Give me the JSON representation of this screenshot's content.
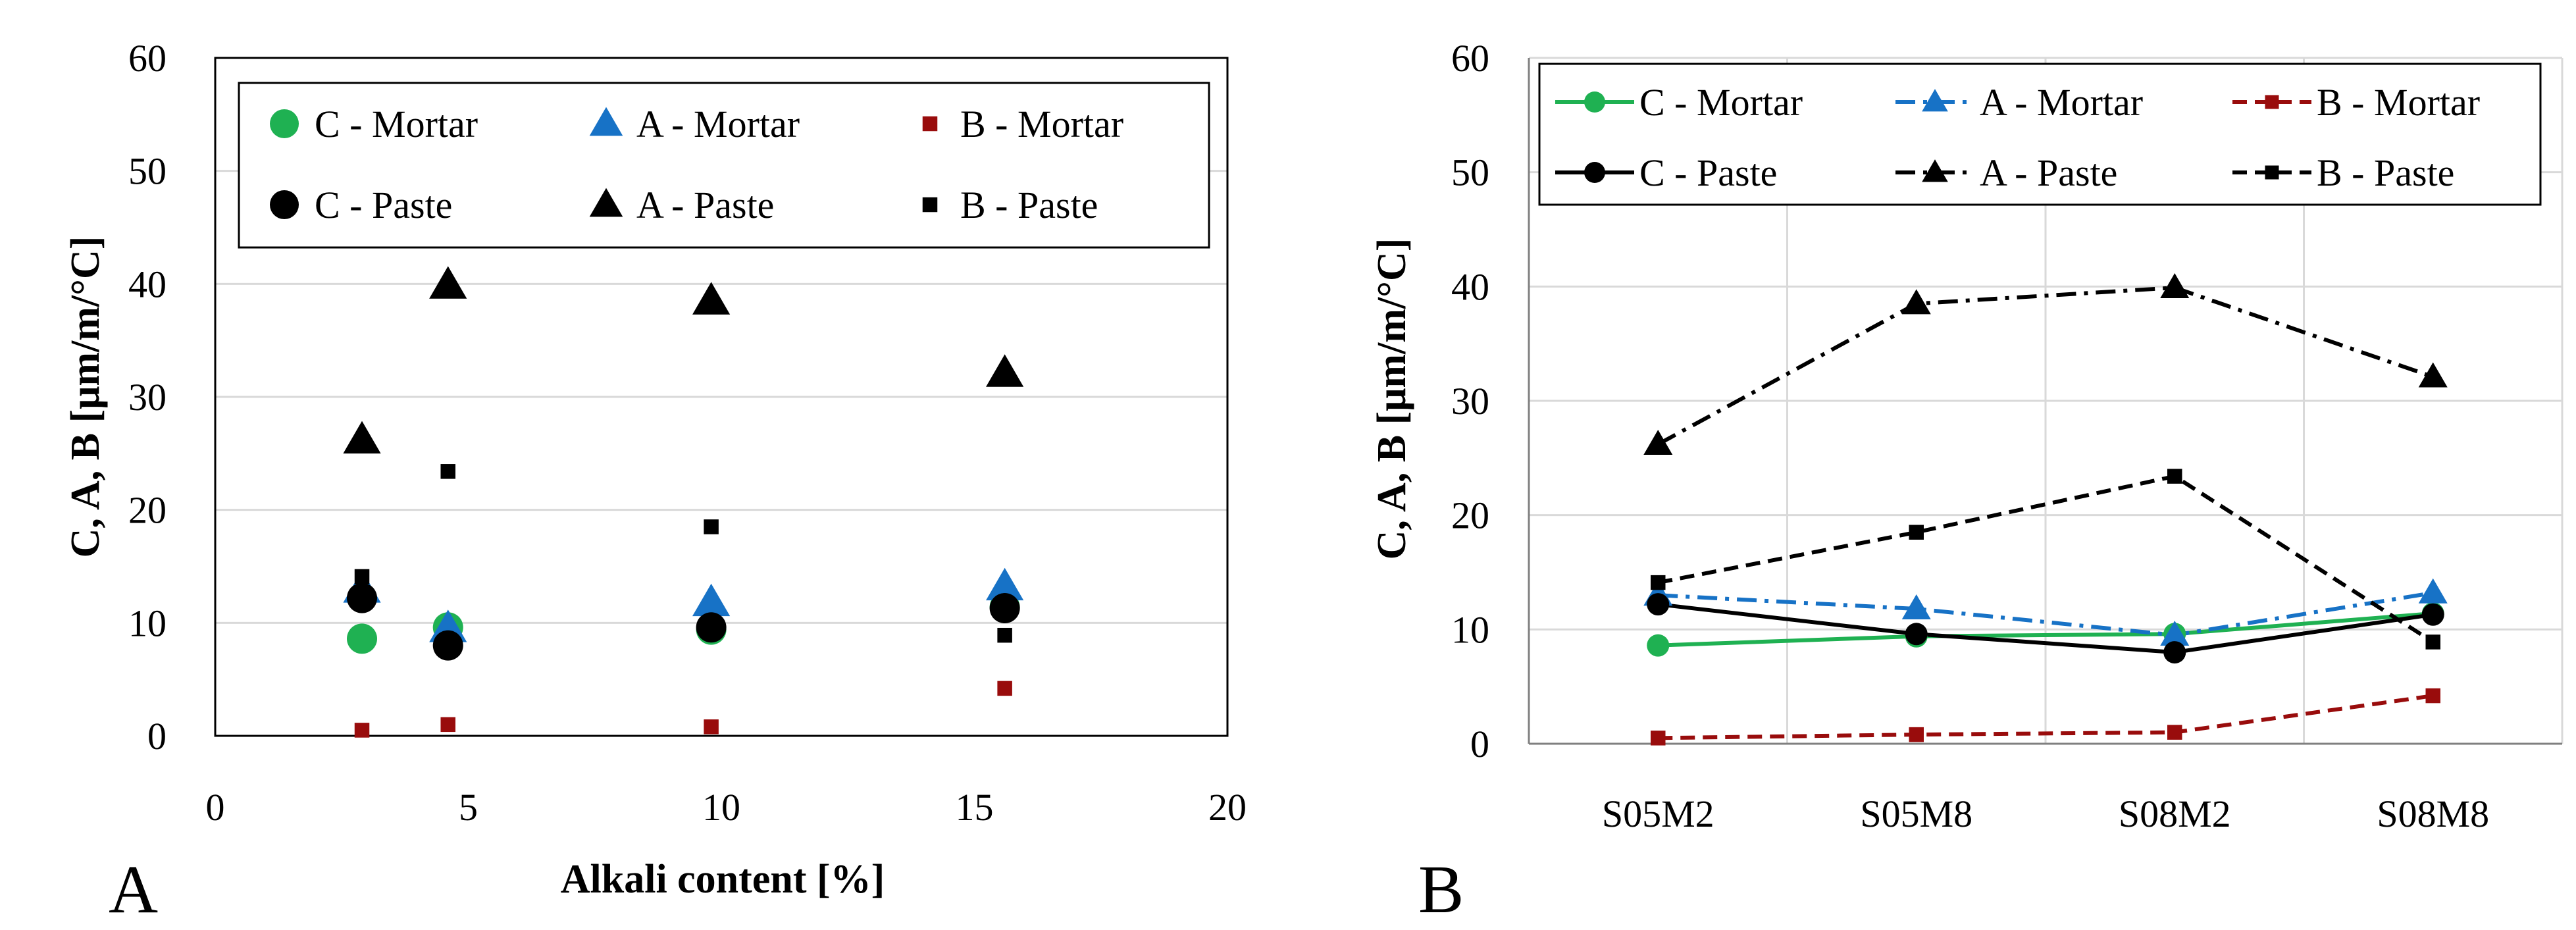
{
  "colors": {
    "green": "#1fb152",
    "blue": "#1772c6",
    "red": "#990c0c",
    "black": "#000000",
    "grid": "#d9d9d9"
  },
  "chart_data": [
    {
      "panel": "A",
      "type": "scatter",
      "xlabel": "Alkali content [%]",
      "ylabel": "C, A, B [μm/m/°C]",
      "xlim": [
        0,
        20
      ],
      "ylim": [
        0,
        60
      ],
      "x_ticks": [
        "0",
        "5",
        "10",
        "15",
        "20"
      ],
      "y_ticks": [
        "0",
        "10",
        "20",
        "30",
        "40",
        "50",
        "60"
      ],
      "grid": "horizontal",
      "legend_position": "top",
      "series": [
        {
          "name": "C - Mortar",
          "marker": "circle",
          "color": "#1fb152",
          "x": [
            2.9,
            4.6,
            9.8,
            15.6
          ],
          "y": [
            8.6,
            9.6,
            9.4,
            11.4
          ]
        },
        {
          "name": "A - Mortar",
          "marker": "triangle",
          "color": "#1772c6",
          "x": [
            2.9,
            4.6,
            9.8,
            15.6
          ],
          "y": [
            13.0,
            9.5,
            11.8,
            13.2
          ]
        },
        {
          "name": "B - Mortar",
          "marker": "square",
          "color": "#990c0c",
          "x": [
            2.9,
            4.6,
            9.8,
            15.6
          ],
          "y": [
            0.5,
            1.0,
            0.8,
            4.2
          ]
        },
        {
          "name": "C - Paste",
          "marker": "circle",
          "color": "#000000",
          "x": [
            2.9,
            4.6,
            9.8,
            15.6
          ],
          "y": [
            12.2,
            8.0,
            9.6,
            11.3
          ]
        },
        {
          "name": "A - Paste",
          "marker": "triangle",
          "color": "#000000",
          "x": [
            2.9,
            4.6,
            9.8,
            15.6
          ],
          "y": [
            26.2,
            39.9,
            38.5,
            32.1
          ]
        },
        {
          "name": "B - Paste",
          "marker": "square",
          "color": "#000000",
          "x": [
            2.9,
            4.6,
            9.8,
            15.6
          ],
          "y": [
            14.1,
            23.4,
            18.5,
            8.9
          ]
        }
      ]
    },
    {
      "panel": "B",
      "type": "line",
      "xlabel": "",
      "ylabel": "C, A, B [μm/m/°C]",
      "categories": [
        "S05M2",
        "S05M8",
        "S08M2",
        "S08M8"
      ],
      "ylim": [
        0,
        60
      ],
      "y_ticks": [
        "0",
        "10",
        "20",
        "30",
        "40",
        "50",
        "60"
      ],
      "grid": "both",
      "legend_position": "top",
      "series": [
        {
          "name": "C - Mortar",
          "marker": "circle",
          "color": "#1fb152",
          "line": "solid",
          "values": [
            8.6,
            9.4,
            9.6,
            11.4
          ]
        },
        {
          "name": "A - Mortar",
          "marker": "triangle",
          "color": "#1772c6",
          "line": "dashdot",
          "values": [
            13.0,
            11.8,
            9.5,
            13.2
          ]
        },
        {
          "name": "B - Mortar",
          "marker": "square",
          "color": "#990c0c",
          "line": "dashed",
          "values": [
            0.5,
            0.8,
            1.0,
            4.2
          ]
        },
        {
          "name": "C - Paste",
          "marker": "circle",
          "color": "#000000",
          "line": "solid",
          "values": [
            12.2,
            9.6,
            8.0,
            11.3
          ]
        },
        {
          "name": "A - Paste",
          "marker": "triangle",
          "color": "#000000",
          "line": "dashdot",
          "values": [
            26.2,
            38.5,
            39.9,
            32.1
          ]
        },
        {
          "name": "B - Paste",
          "marker": "square",
          "color": "#000000",
          "line": "dashed",
          "values": [
            14.1,
            18.5,
            23.4,
            8.9
          ]
        }
      ]
    }
  ]
}
